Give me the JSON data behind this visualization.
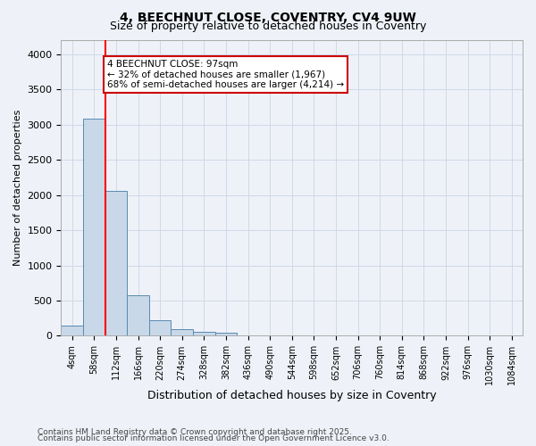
{
  "title_line1": "4, BEECHNUT CLOSE, COVENTRY, CV4 9UW",
  "title_line2": "Size of property relative to detached houses in Coventry",
  "xlabel": "Distribution of detached houses by size in Coventry",
  "ylabel": "Number of detached properties",
  "bin_labels": [
    "4sqm",
    "58sqm",
    "112sqm",
    "166sqm",
    "220sqm",
    "274sqm",
    "328sqm",
    "382sqm",
    "436sqm",
    "490sqm",
    "544sqm",
    "598sqm",
    "652sqm",
    "706sqm",
    "760sqm",
    "814sqm",
    "868sqm",
    "922sqm",
    "976sqm",
    "1030sqm",
    "1084sqm"
  ],
  "bar_heights": [
    150,
    3080,
    2060,
    580,
    220,
    90,
    60,
    50,
    0,
    0,
    0,
    0,
    0,
    0,
    0,
    0,
    0,
    0,
    0,
    0,
    0
  ],
  "bar_color": "#c8d8e8",
  "bar_edge_color": "#5a8ab0",
  "grid_color": "#d0d8e8",
  "background_color": "#eef2f8",
  "annotation_text": "4 BEECHNUT CLOSE: 97sqm\n← 32% of detached houses are smaller (1,967)\n68% of semi-detached houses are larger (4,214) →",
  "annotation_box_color": "#ffffff",
  "annotation_box_edge": "#cc0000",
  "ylim": [
    0,
    4200
  ],
  "yticks": [
    0,
    500,
    1000,
    1500,
    2000,
    2500,
    3000,
    3500,
    4000
  ],
  "footer_line1": "Contains HM Land Registry data © Crown copyright and database right 2025.",
  "footer_line2": "Contains public sector information licensed under the Open Government Licence v3.0."
}
